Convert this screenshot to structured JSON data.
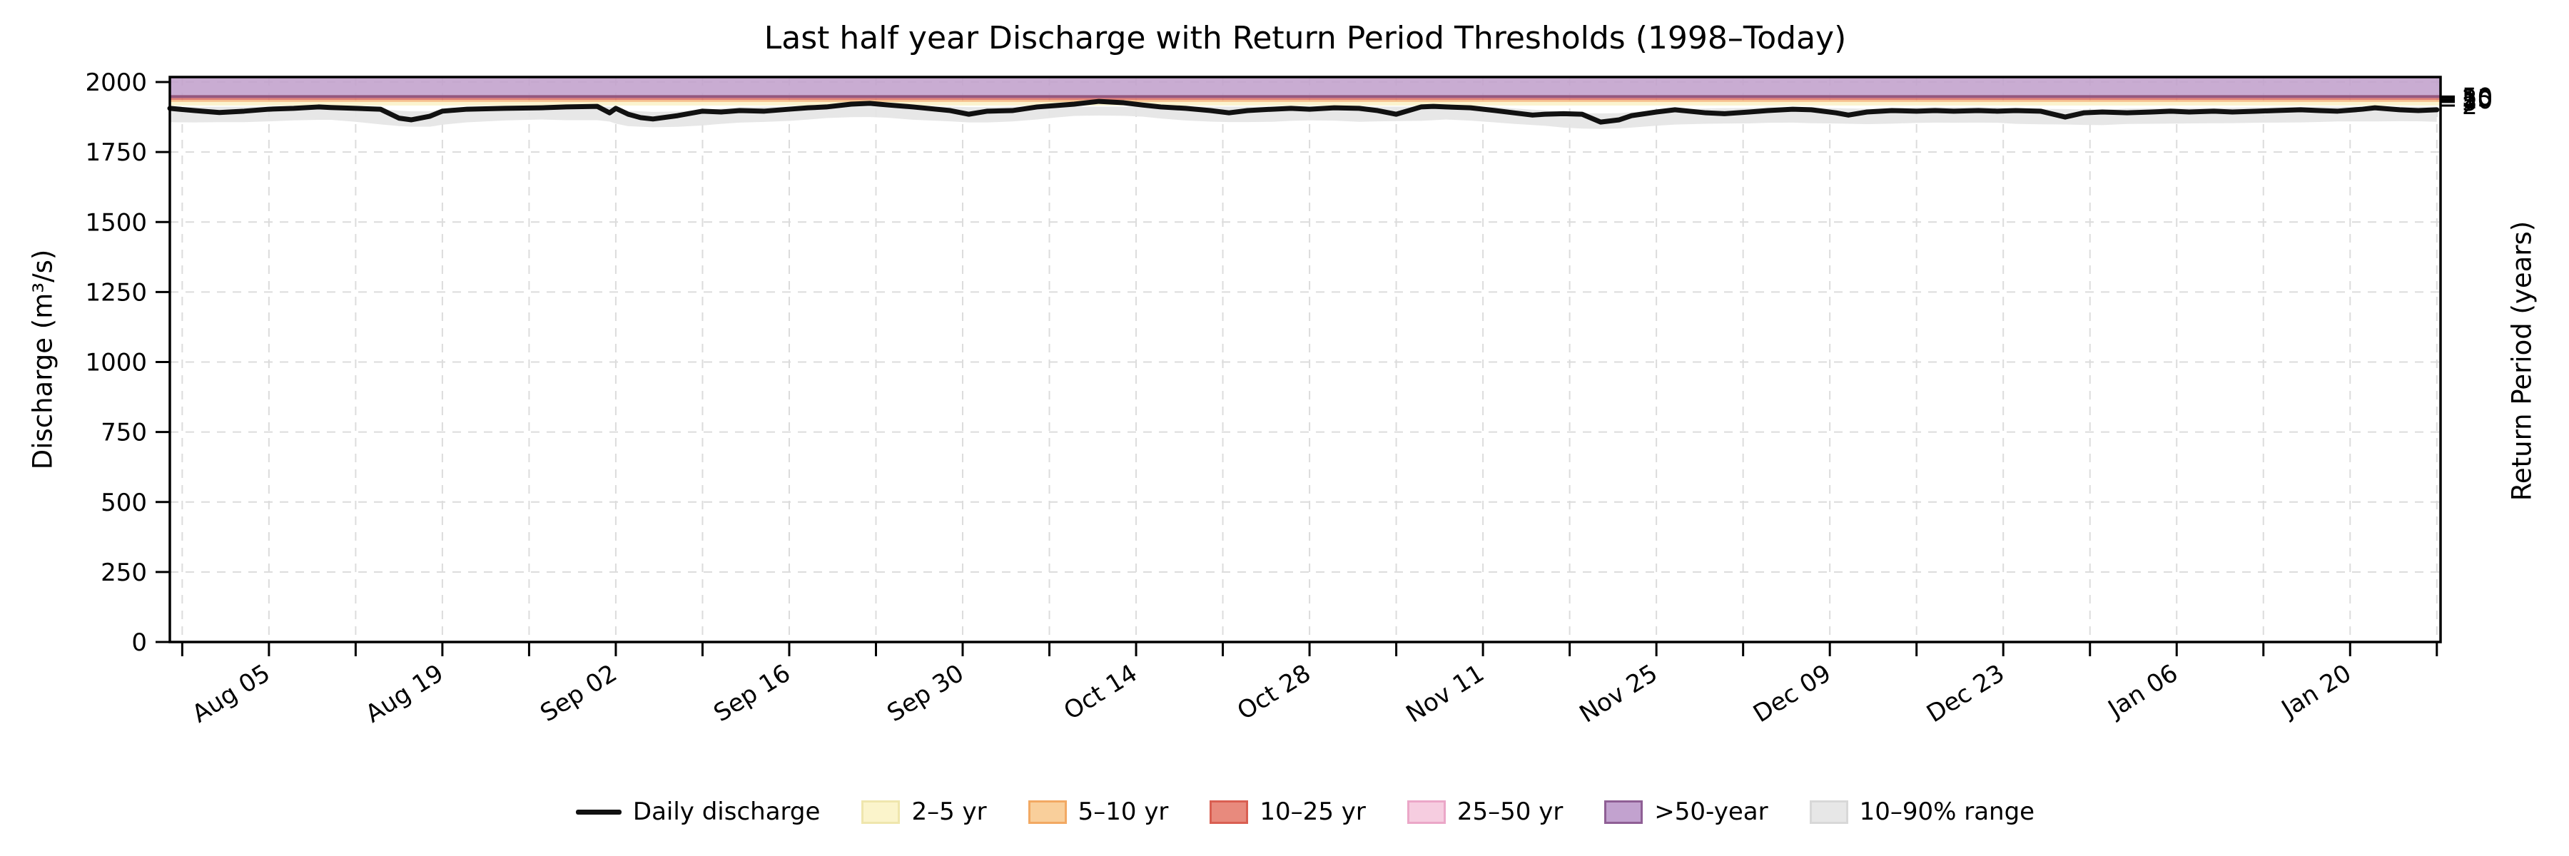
{
  "title": "Last half year Discharge with Return Period Thresholds (1998–Today)",
  "axes": {
    "left_label": "Discharge (m³/s)",
    "right_label": "Return Period (years)",
    "y_ticks": [
      0,
      250,
      500,
      750,
      1000,
      1250,
      1500,
      1750,
      2000
    ],
    "right_tick_labels": [
      "2",
      "5",
      "10",
      "25",
      "50"
    ]
  },
  "legend": {
    "items": [
      {
        "label": "Daily discharge",
        "swatch": "line",
        "fill": "#111111",
        "edge": "#111111"
      },
      {
        "label": "2–5 yr",
        "swatch": "patch",
        "fill": "#fbf4cb",
        "edge": "#efe6ad"
      },
      {
        "label": "5–10 yr",
        "swatch": "patch",
        "fill": "#f9cf9b",
        "edge": "#f2a963"
      },
      {
        "label": "10–25 yr",
        "swatch": "patch",
        "fill": "#e88a7d",
        "edge": "#d95f52"
      },
      {
        "label": "25–50 yr",
        "swatch": "patch",
        "fill": "#f6cde0",
        "edge": "#eba7c8"
      },
      {
        "label": ">50-year",
        "swatch": "patch",
        "fill": "#c2a2cf",
        "edge": "#8f5f95"
      },
      {
        "label": "10–90% range",
        "swatch": "patch",
        "fill": "#e7e7e7",
        "edge": "#d8d8d8"
      }
    ]
  },
  "chart_data": {
    "type": "line",
    "title": "Last half year Discharge with Return Period Thresholds (1998–Today)",
    "ylabel": "Discharge (m³/s)",
    "y2label": "Return Period (years)",
    "ylim": [
      0,
      2018
    ],
    "grid": "dashed light-gray, horizontal every 250, vertical every 7 days",
    "legend_position": "bottom center, horizontal",
    "x_domain_days": [
      0,
      183.3
    ],
    "x_major_ticks": [
      {
        "label": "Aug 05",
        "day": 8
      },
      {
        "label": "Aug 19",
        "day": 22
      },
      {
        "label": "Sep 02",
        "day": 36
      },
      {
        "label": "Sep 16",
        "day": 50
      },
      {
        "label": "Sep 30",
        "day": 64
      },
      {
        "label": "Oct 14",
        "day": 78
      },
      {
        "label": "Oct 28",
        "day": 92
      },
      {
        "label": "Nov 11",
        "day": 106
      },
      {
        "label": "Nov 25",
        "day": 120
      },
      {
        "label": "Dec 09",
        "day": 134
      },
      {
        "label": "Dec 23",
        "day": 148
      },
      {
        "label": "Jan 06",
        "day": 162
      },
      {
        "label": "Jan 20",
        "day": 176
      }
    ],
    "x_minor_tick_days": [
      1,
      15,
      29,
      43,
      57,
      71,
      85,
      99,
      113,
      127,
      141,
      155,
      169,
      183
    ],
    "return_period_thresholds": {
      "2": 1916,
      "5": 1929,
      "10": 1936,
      "25": 1943,
      "50": 1948
    },
    "right_axis_tick_values": [
      1916,
      1929,
      1936,
      1943,
      1948
    ],
    "bands": [
      {
        "label": "2–5 yr",
        "from": 1916,
        "to": 1929,
        "fill": "#fbf3c8"
      },
      {
        "label": "5–10 yr",
        "from": 1929,
        "to": 1936,
        "fill": "#f5b97e"
      },
      {
        "label": "10–25 yr",
        "from": 1936,
        "to": 1943,
        "fill": "#dd6e62"
      },
      {
        "label": "25–50 yr",
        "from": 1943,
        "to": 1948,
        "fill": "#e8a8c2"
      },
      {
        "label": ">50-year",
        "from": 1948,
        "to": 2018,
        "fill": "#c2a0cc",
        "bottom_edge": "#94587f"
      }
    ],
    "range_band": {
      "name": "10–90% range",
      "fill": "#e4e4e4",
      "top_cap": 1912,
      "top_offset": 13,
      "bottom_offset": 42,
      "smooth_window": 5
    },
    "series": [
      {
        "name": "Daily discharge",
        "color": "#111111",
        "x_day": [
          0,
          2,
          4,
          6,
          8,
          10,
          12,
          13,
          15,
          17,
          18.5,
          19.5,
          21,
          22,
          24,
          27,
          30,
          32,
          34.5,
          35.5,
          36,
          37,
          38,
          39,
          41,
          43,
          44.5,
          46,
          48,
          50,
          51.5,
          53,
          55,
          56.5,
          58,
          60,
          63,
          64.5,
          66,
          68,
          70,
          71.5,
          73,
          75,
          77,
          78.5,
          80,
          82,
          84,
          85.5,
          87,
          89,
          90.5,
          92,
          94,
          96,
          97.5,
          99,
          101,
          102,
          103,
          105,
          107,
          108.5,
          110,
          111,
          112.5,
          114,
          115.5,
          117,
          118,
          120,
          121.5,
          124,
          125.5,
          127.5,
          129,
          131,
          132.5,
          134.5,
          135.5,
          137,
          139,
          141,
          142.5,
          144,
          146,
          147.5,
          149,
          151,
          153,
          154.5,
          156,
          158,
          160,
          161.5,
          163,
          165,
          166.5,
          168.5,
          170,
          172,
          173.5,
          175,
          177,
          178,
          180,
          181.5,
          183
        ],
        "values": [
          1906,
          1898,
          1891,
          1896,
          1903,
          1906,
          1911,
          1909,
          1906,
          1903,
          1871,
          1865,
          1878,
          1896,
          1903,
          1906,
          1908,
          1911,
          1913,
          1890,
          1906,
          1885,
          1873,
          1868,
          1880,
          1896,
          1893,
          1898,
          1896,
          1903,
          1908,
          1911,
          1921,
          1924,
          1918,
          1911,
          1898,
          1885,
          1896,
          1898,
          1911,
          1916,
          1921,
          1931,
          1926,
          1918,
          1911,
          1906,
          1898,
          1890,
          1898,
          1903,
          1906,
          1903,
          1908,
          1906,
          1898,
          1885,
          1911,
          1913,
          1911,
          1908,
          1898,
          1890,
          1882,
          1885,
          1887,
          1885,
          1857,
          1865,
          1880,
          1893,
          1901,
          1890,
          1887,
          1893,
          1898,
          1903,
          1901,
          1890,
          1882,
          1893,
          1898,
          1896,
          1898,
          1896,
          1898,
          1896,
          1898,
          1896,
          1875,
          1890,
          1893,
          1890,
          1893,
          1896,
          1893,
          1896,
          1893,
          1896,
          1898,
          1901,
          1898,
          1896,
          1903,
          1908,
          1901,
          1898,
          1901
        ]
      }
    ]
  }
}
